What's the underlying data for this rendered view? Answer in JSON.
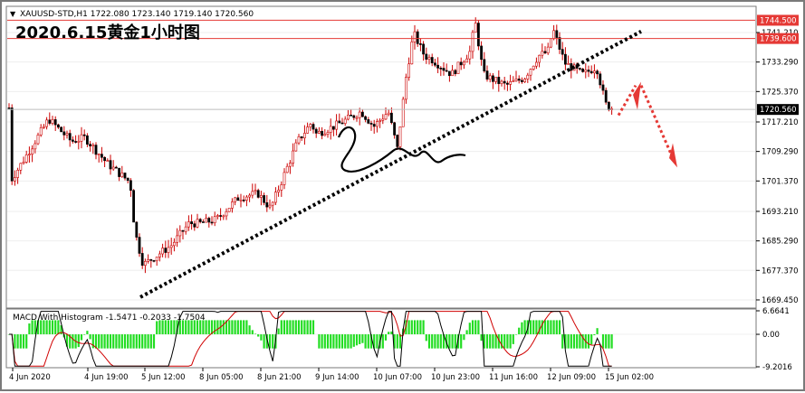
{
  "header": {
    "symbol_line": "XAUUSD-STD,H1  1722.080 1723.140 1719.140 1720.560",
    "caption": "2020.6.15黄金1小时图"
  },
  "price_axis": {
    "ticks": [
      "1741.210",
      "1733.290",
      "1725.370",
      "1717.210",
      "1709.290",
      "1701.370",
      "1693.210",
      "1685.290",
      "1677.370",
      "1669.450"
    ],
    "labels": [
      {
        "name": "level-1744-label",
        "text": "1744.500",
        "value": 1744.5,
        "bg": "#e53935",
        "fg": "#ffffff"
      },
      {
        "name": "level-1739-label",
        "text": "1739.600",
        "value": 1739.6,
        "bg": "#e53935",
        "fg": "#ffffff"
      },
      {
        "name": "current-price-label",
        "text": "1720.560",
        "value": 1720.56,
        "bg": "#000000",
        "fg": "#ffffff"
      }
    ]
  },
  "levels": {
    "resistance_high": 1744.5,
    "resistance_low": 1739.6,
    "current": 1720.56
  },
  "macd": {
    "title": "MACD With Histogram -1.5471 -0.2033 -1.7504",
    "ticks": [
      "6.6641",
      "0.00",
      "-9.2016"
    ],
    "range": [
      -9.2016,
      6.6641
    ],
    "colors": {
      "histogram": "#22dd22",
      "macd_line": "#000000",
      "signal_line": "#d00000"
    }
  },
  "time_axis": {
    "labels": [
      "4 Jun 2020",
      "4 Jun 19:00",
      "5 Jun 12:00",
      "8 Jun 05:00",
      "8 Jun 21:00",
      "9 Jun 14:00",
      "10 Jun 07:00",
      "10 Jun 23:00",
      "11 Jun 16:00",
      "12 Jun 09:00",
      "15 Jun 02:00"
    ]
  },
  "colors": {
    "bull": "#ffffff",
    "bear": "#000000",
    "wick": "#cc0000",
    "accent_red": "#e53935",
    "trendline": "#000000"
  },
  "chart_data": {
    "type": "candlestick",
    "title": "2020.6.15黄金1小时图",
    "symbol": "XAUUSD-STD,H1",
    "ohlc_last": {
      "open": 1722.08,
      "high": 1723.14,
      "low": 1719.14,
      "close": 1720.56
    },
    "ylim": [
      1667.5,
      1748.0
    ],
    "anchors": [
      {
        "time": "4 Jun 2020",
        "price": 1701
      },
      {
        "time": "4 Jun 19:00",
        "price": 1713
      },
      {
        "time": "5 Jun 12:00",
        "price": 1680
      },
      {
        "time": "8 Jun 05:00",
        "price": 1690
      },
      {
        "time": "8 Jun 21:00",
        "price": 1698
      },
      {
        "time": "9 Jun 14:00",
        "price": 1714
      },
      {
        "time": "10 Jun 07:00",
        "price": 1716
      },
      {
        "time": "10 Jun 23:00",
        "price": 1734
      },
      {
        "time": "11 Jun 16:00",
        "price": 1729
      },
      {
        "time": "12 Jun 09:00",
        "price": 1736
      },
      {
        "time": "15 Jun 02:00",
        "price": 1722
      }
    ]
  }
}
